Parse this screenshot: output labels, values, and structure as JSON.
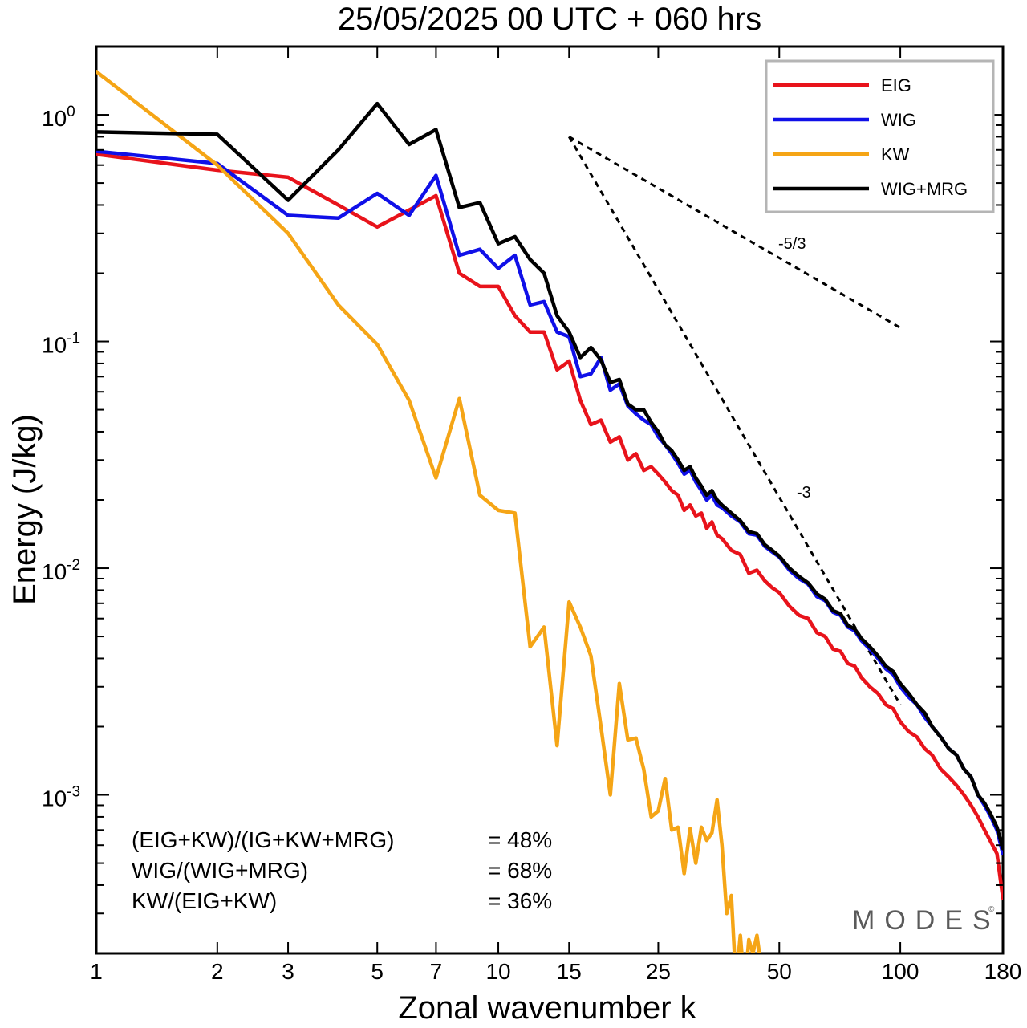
{
  "chart_data": {
    "type": "line",
    "title": "25/05/2025  00 UTC  + 060 hrs",
    "xlabel": "Zonal wavenumber k",
    "ylabel": "Energy (J/kg)",
    "xscale": "log",
    "yscale": "log",
    "xlim": [
      1,
      180
    ],
    "ylim": [
      0.0002,
      2.0
    ],
    "x_ticks": [
      1,
      2,
      3,
      5,
      7,
      10,
      15,
      25,
      50,
      100,
      180
    ],
    "x_tick_labels": [
      "1",
      "2",
      "3",
      "5",
      "7",
      "10",
      "15",
      "25",
      "50",
      "100",
      "180"
    ],
    "y_ticks": [
      {
        "value": 1.0,
        "base": "10",
        "exp": "0"
      },
      {
        "value": 0.1,
        "base": "10",
        "exp": "-1"
      },
      {
        "value": 0.01,
        "base": "10",
        "exp": "-2"
      },
      {
        "value": 0.001,
        "base": "10",
        "exp": "-3"
      }
    ],
    "legend_placement": "top-right",
    "grid": false,
    "series": [
      {
        "name": "EIG",
        "color": "#e8131b",
        "points": [
          [
            1,
            0.67
          ],
          [
            2,
            0.57
          ],
          [
            3,
            0.53
          ],
          [
            4,
            0.4
          ],
          [
            5,
            0.32
          ],
          [
            6,
            0.38
          ],
          [
            7,
            0.44
          ],
          [
            8,
            0.2
          ],
          [
            9,
            0.175
          ],
          [
            10,
            0.175
          ],
          [
            11,
            0.13
          ],
          [
            12,
            0.11
          ],
          [
            13,
            0.11
          ],
          [
            14,
            0.075
          ],
          [
            15,
            0.082
          ],
          [
            16,
            0.055
          ],
          [
            17,
            0.043
          ],
          [
            18,
            0.045
          ],
          [
            19,
            0.036
          ],
          [
            20,
            0.038
          ],
          [
            21,
            0.03
          ],
          [
            22,
            0.032
          ],
          [
            23,
            0.027
          ],
          [
            24,
            0.028
          ],
          [
            25,
            0.026
          ],
          [
            26,
            0.024
          ],
          [
            27,
            0.022
          ],
          [
            28,
            0.021
          ],
          [
            29,
            0.018
          ],
          [
            30,
            0.019
          ],
          [
            31,
            0.017
          ],
          [
            32,
            0.0175
          ],
          [
            33,
            0.015
          ],
          [
            34,
            0.016
          ],
          [
            35,
            0.014
          ],
          [
            36,
            0.0135
          ],
          [
            38,
            0.012
          ],
          [
            40,
            0.0115
          ],
          [
            42,
            0.0095
          ],
          [
            44,
            0.0098
          ],
          [
            46,
            0.0088
          ],
          [
            48,
            0.0082
          ],
          [
            50,
            0.0078
          ],
          [
            53,
            0.0068
          ],
          [
            56,
            0.0062
          ],
          [
            59,
            0.006
          ],
          [
            62,
            0.0052
          ],
          [
            65,
            0.005
          ],
          [
            68,
            0.0044
          ],
          [
            71,
            0.0043
          ],
          [
            74,
            0.0038
          ],
          [
            77,
            0.0037
          ],
          [
            80,
            0.0033
          ],
          [
            84,
            0.003
          ],
          [
            88,
            0.0028
          ],
          [
            92,
            0.0025
          ],
          [
            96,
            0.0024
          ],
          [
            100,
            0.0021
          ],
          [
            105,
            0.0019
          ],
          [
            110,
            0.0018
          ],
          [
            115,
            0.0016
          ],
          [
            120,
            0.0015
          ],
          [
            126,
            0.0013
          ],
          [
            132,
            0.0012
          ],
          [
            138,
            0.0011
          ],
          [
            144,
            0.001
          ],
          [
            150,
            0.0009
          ],
          [
            156,
            0.0008
          ],
          [
            162,
            0.0007
          ],
          [
            168,
            0.00062
          ],
          [
            174,
            0.00055
          ],
          [
            180,
            0.00035
          ]
        ]
      },
      {
        "name": "WIG",
        "color": "#1010e8",
        "points": [
          [
            1,
            0.69
          ],
          [
            2,
            0.61
          ],
          [
            3,
            0.36
          ],
          [
            4,
            0.35
          ],
          [
            5,
            0.45
          ],
          [
            6,
            0.36
          ],
          [
            7,
            0.54
          ],
          [
            8,
            0.24
          ],
          [
            9,
            0.255
          ],
          [
            10,
            0.21
          ],
          [
            11,
            0.24
          ],
          [
            12,
            0.145
          ],
          [
            13,
            0.15
          ],
          [
            14,
            0.11
          ],
          [
            15,
            0.105
          ],
          [
            16,
            0.07
          ],
          [
            17,
            0.072
          ],
          [
            18,
            0.085
          ],
          [
            19,
            0.061
          ],
          [
            20,
            0.065
          ],
          [
            21,
            0.052
          ],
          [
            22,
            0.048
          ],
          [
            23,
            0.045
          ],
          [
            24,
            0.043
          ],
          [
            25,
            0.038
          ],
          [
            26,
            0.035
          ],
          [
            27,
            0.032
          ],
          [
            28,
            0.029
          ],
          [
            29,
            0.026
          ],
          [
            30,
            0.027
          ],
          [
            31,
            0.024
          ],
          [
            32,
            0.022
          ],
          [
            33,
            0.02
          ],
          [
            34,
            0.021
          ],
          [
            35,
            0.019
          ],
          [
            36,
            0.0185
          ],
          [
            38,
            0.017
          ],
          [
            40,
            0.016
          ],
          [
            42,
            0.0142
          ],
          [
            44,
            0.014
          ],
          [
            46,
            0.0125
          ],
          [
            48,
            0.0118
          ],
          [
            50,
            0.0112
          ],
          [
            53,
            0.0098
          ],
          [
            56,
            0.009
          ],
          [
            59,
            0.0085
          ],
          [
            62,
            0.0075
          ],
          [
            65,
            0.0072
          ],
          [
            68,
            0.0064
          ],
          [
            71,
            0.0062
          ],
          [
            74,
            0.0055
          ],
          [
            77,
            0.0053
          ],
          [
            80,
            0.0048
          ],
          [
            84,
            0.0044
          ],
          [
            88,
            0.004
          ],
          [
            92,
            0.0036
          ],
          [
            96,
            0.0034
          ],
          [
            100,
            0.003
          ],
          [
            105,
            0.0027
          ],
          [
            110,
            0.0025
          ],
          [
            115,
            0.0022
          ],
          [
            120,
            0.002
          ],
          [
            126,
            0.0018
          ],
          [
            132,
            0.0016
          ],
          [
            138,
            0.0015
          ],
          [
            144,
            0.0013
          ],
          [
            150,
            0.0012
          ],
          [
            156,
            0.001
          ],
          [
            162,
            0.0009
          ],
          [
            168,
            0.0008
          ],
          [
            174,
            0.0007
          ],
          [
            180,
            0.00055
          ]
        ]
      },
      {
        "name": "KW",
        "color": "#f5a516",
        "points": [
          [
            1,
            1.55
          ],
          [
            2,
            0.6
          ],
          [
            3,
            0.3
          ],
          [
            4,
            0.145
          ],
          [
            5,
            0.097
          ],
          [
            6,
            0.055
          ],
          [
            7,
            0.025
          ],
          [
            8,
            0.056
          ],
          [
            9,
            0.021
          ],
          [
            10,
            0.018
          ],
          [
            11,
            0.0175
          ],
          [
            12,
            0.0045
          ],
          [
            13,
            0.0055
          ],
          [
            14,
            0.00165
          ],
          [
            15,
            0.0071
          ],
          [
            16,
            0.0055
          ],
          [
            17,
            0.0041
          ],
          [
            18,
            0.002
          ],
          [
            19,
            0.001
          ],
          [
            20,
            0.0031
          ],
          [
            21,
            0.00175
          ],
          [
            22,
            0.00178
          ],
          [
            23,
            0.0013
          ],
          [
            24,
            0.0008
          ],
          [
            25,
            0.00085
          ],
          [
            26,
            0.00118
          ],
          [
            27,
            0.0007
          ],
          [
            28,
            0.00072
          ],
          [
            29,
            0.00045
          ],
          [
            30,
            0.00071
          ],
          [
            31,
            0.0005
          ],
          [
            32,
            0.00072
          ],
          [
            33,
            0.00063
          ],
          [
            34,
            0.00068
          ],
          [
            35,
            0.00095
          ],
          [
            36,
            0.0006
          ],
          [
            37,
            0.0003
          ],
          [
            38,
            0.00036
          ],
          [
            39,
            0.00015
          ],
          [
            40,
            0.00024
          ],
          [
            41,
            0.00014
          ],
          [
            42,
            0.00023
          ],
          [
            43,
            0.0002
          ],
          [
            44,
            0.00024
          ],
          [
            45,
            0.00018
          ]
        ]
      },
      {
        "name": "WIG+MRG",
        "color": "#000000",
        "points": [
          [
            1,
            0.84
          ],
          [
            2,
            0.82
          ],
          [
            3,
            0.42
          ],
          [
            4,
            0.7
          ],
          [
            5,
            1.12
          ],
          [
            6,
            0.74
          ],
          [
            7,
            0.86
          ],
          [
            8,
            0.39
          ],
          [
            9,
            0.41
          ],
          [
            10,
            0.27
          ],
          [
            11,
            0.29
          ],
          [
            12,
            0.23
          ],
          [
            13,
            0.2
          ],
          [
            14,
            0.13
          ],
          [
            15,
            0.11
          ],
          [
            16,
            0.085
          ],
          [
            17,
            0.094
          ],
          [
            18,
            0.083
          ],
          [
            19,
            0.066
          ],
          [
            20,
            0.068
          ],
          [
            21,
            0.053
          ],
          [
            22,
            0.05
          ],
          [
            23,
            0.05
          ],
          [
            24,
            0.044
          ],
          [
            25,
            0.04
          ],
          [
            26,
            0.035
          ],
          [
            27,
            0.033
          ],
          [
            28,
            0.03
          ],
          [
            29,
            0.027
          ],
          [
            30,
            0.028
          ],
          [
            31,
            0.025
          ],
          [
            32,
            0.023
          ],
          [
            33,
            0.021
          ],
          [
            34,
            0.022
          ],
          [
            35,
            0.02
          ],
          [
            36,
            0.019
          ],
          [
            38,
            0.0175
          ],
          [
            40,
            0.0162
          ],
          [
            42,
            0.0145
          ],
          [
            44,
            0.0142
          ],
          [
            46,
            0.0127
          ],
          [
            48,
            0.012
          ],
          [
            50,
            0.0113
          ],
          [
            53,
            0.01
          ],
          [
            56,
            0.0092
          ],
          [
            59,
            0.0086
          ],
          [
            62,
            0.0077
          ],
          [
            65,
            0.0073
          ],
          [
            68,
            0.0065
          ],
          [
            71,
            0.0063
          ],
          [
            74,
            0.0056
          ],
          [
            77,
            0.0054
          ],
          [
            80,
            0.0049
          ],
          [
            84,
            0.0045
          ],
          [
            88,
            0.0041
          ],
          [
            92,
            0.0037
          ],
          [
            96,
            0.0035
          ],
          [
            100,
            0.0031
          ],
          [
            105,
            0.0028
          ],
          [
            110,
            0.0025
          ],
          [
            115,
            0.0023
          ],
          [
            120,
            0.002
          ],
          [
            126,
            0.0018
          ],
          [
            132,
            0.0016
          ],
          [
            138,
            0.0015
          ],
          [
            144,
            0.0013
          ],
          [
            150,
            0.0012
          ],
          [
            156,
            0.001
          ],
          [
            162,
            0.00092
          ],
          [
            168,
            0.00082
          ],
          [
            174,
            0.00072
          ],
          [
            180,
            0.00058
          ]
        ]
      }
    ],
    "reference_slopes": [
      {
        "label": "-5/3",
        "start": [
          15,
          0.8
        ],
        "end": [
          100,
          0.115
        ]
      },
      {
        "label": "-3",
        "start": [
          15,
          0.8
        ],
        "end": [
          100,
          0.0025
        ]
      }
    ]
  },
  "annotations": {
    "stats": [
      {
        "label": "(EIG+KW)/(IG+KW+MRG)",
        "value": "= 48%"
      },
      {
        "label": "WIG/(WIG+MRG)",
        "value": "= 68%"
      },
      {
        "label": "KW/(EIG+KW)",
        "value": "= 36%"
      }
    ],
    "logo": "MODES",
    "logo_mark": "©"
  }
}
